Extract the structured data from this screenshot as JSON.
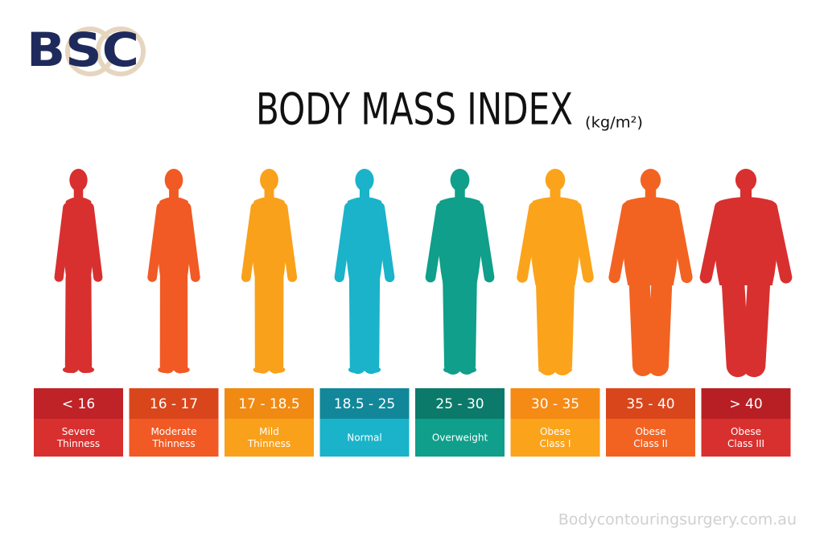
{
  "logo": "BSC",
  "title": "BODY MASS INDEX",
  "unit": "(kg/m²)",
  "categories": [
    {
      "range": "< 16",
      "label": [
        "Severe",
        "Thinness"
      ],
      "color": "#d8302f",
      "header_color": "#bf2227"
    },
    {
      "range": "16 - 17",
      "label": [
        "Moderate",
        "Thinness"
      ],
      "color": "#f15a24",
      "header_color": "#d9461c"
    },
    {
      "range": "17 - 18.5",
      "label": [
        "Mild",
        "Thinness"
      ],
      "color": "#f9a11b",
      "header_color": "#f08a12"
    },
    {
      "range": "18.5 - 25",
      "label": [
        "Normal"
      ],
      "color": "#1ab3c9",
      "header_color": "#12879a"
    },
    {
      "range": "25 - 30",
      "label": [
        "Overweight"
      ],
      "color": "#0f9f8a",
      "header_color": "#0b7a6a"
    },
    {
      "range": "30 - 35",
      "label": [
        "Obese",
        "Class I"
      ],
      "color": "#fba31b",
      "header_color": "#f58a14"
    },
    {
      "range": "35 - 40",
      "label": [
        "Obese",
        "Class II"
      ],
      "color": "#f26322",
      "header_color": "#d9461c"
    },
    {
      "range": "> 40",
      "label": [
        "Obese",
        "Class III"
      ],
      "color": "#d8302f",
      "header_color": "#b81f24"
    }
  ],
  "watermark": "Bodycontouringsurgery.com.au"
}
